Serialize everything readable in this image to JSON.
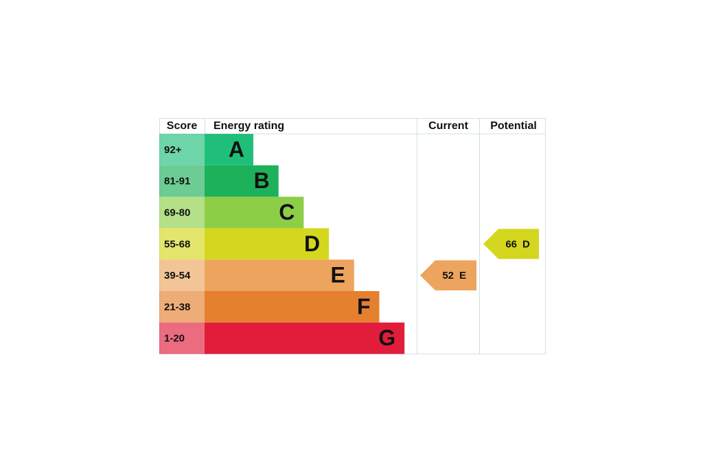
{
  "header": {
    "score": "Score",
    "rating": "Energy rating",
    "current": "Current",
    "potential": "Potential"
  },
  "bands": [
    {
      "score": "92+",
      "letter": "A",
      "color": "#1fbf7a"
    },
    {
      "score": "81-91",
      "letter": "B",
      "color": "#1db15b"
    },
    {
      "score": "69-80",
      "letter": "C",
      "color": "#8ccf47"
    },
    {
      "score": "55-68",
      "letter": "D",
      "color": "#d5d71e"
    },
    {
      "score": "39-54",
      "letter": "E",
      "color": "#eca45e"
    },
    {
      "score": "21-38",
      "letter": "F",
      "color": "#e5802f"
    },
    {
      "score": "1-20",
      "letter": "G",
      "color": "#e11d3b"
    }
  ],
  "current": {
    "score": 52,
    "band": "E"
  },
  "potential": {
    "score": 66,
    "band": "D"
  }
}
